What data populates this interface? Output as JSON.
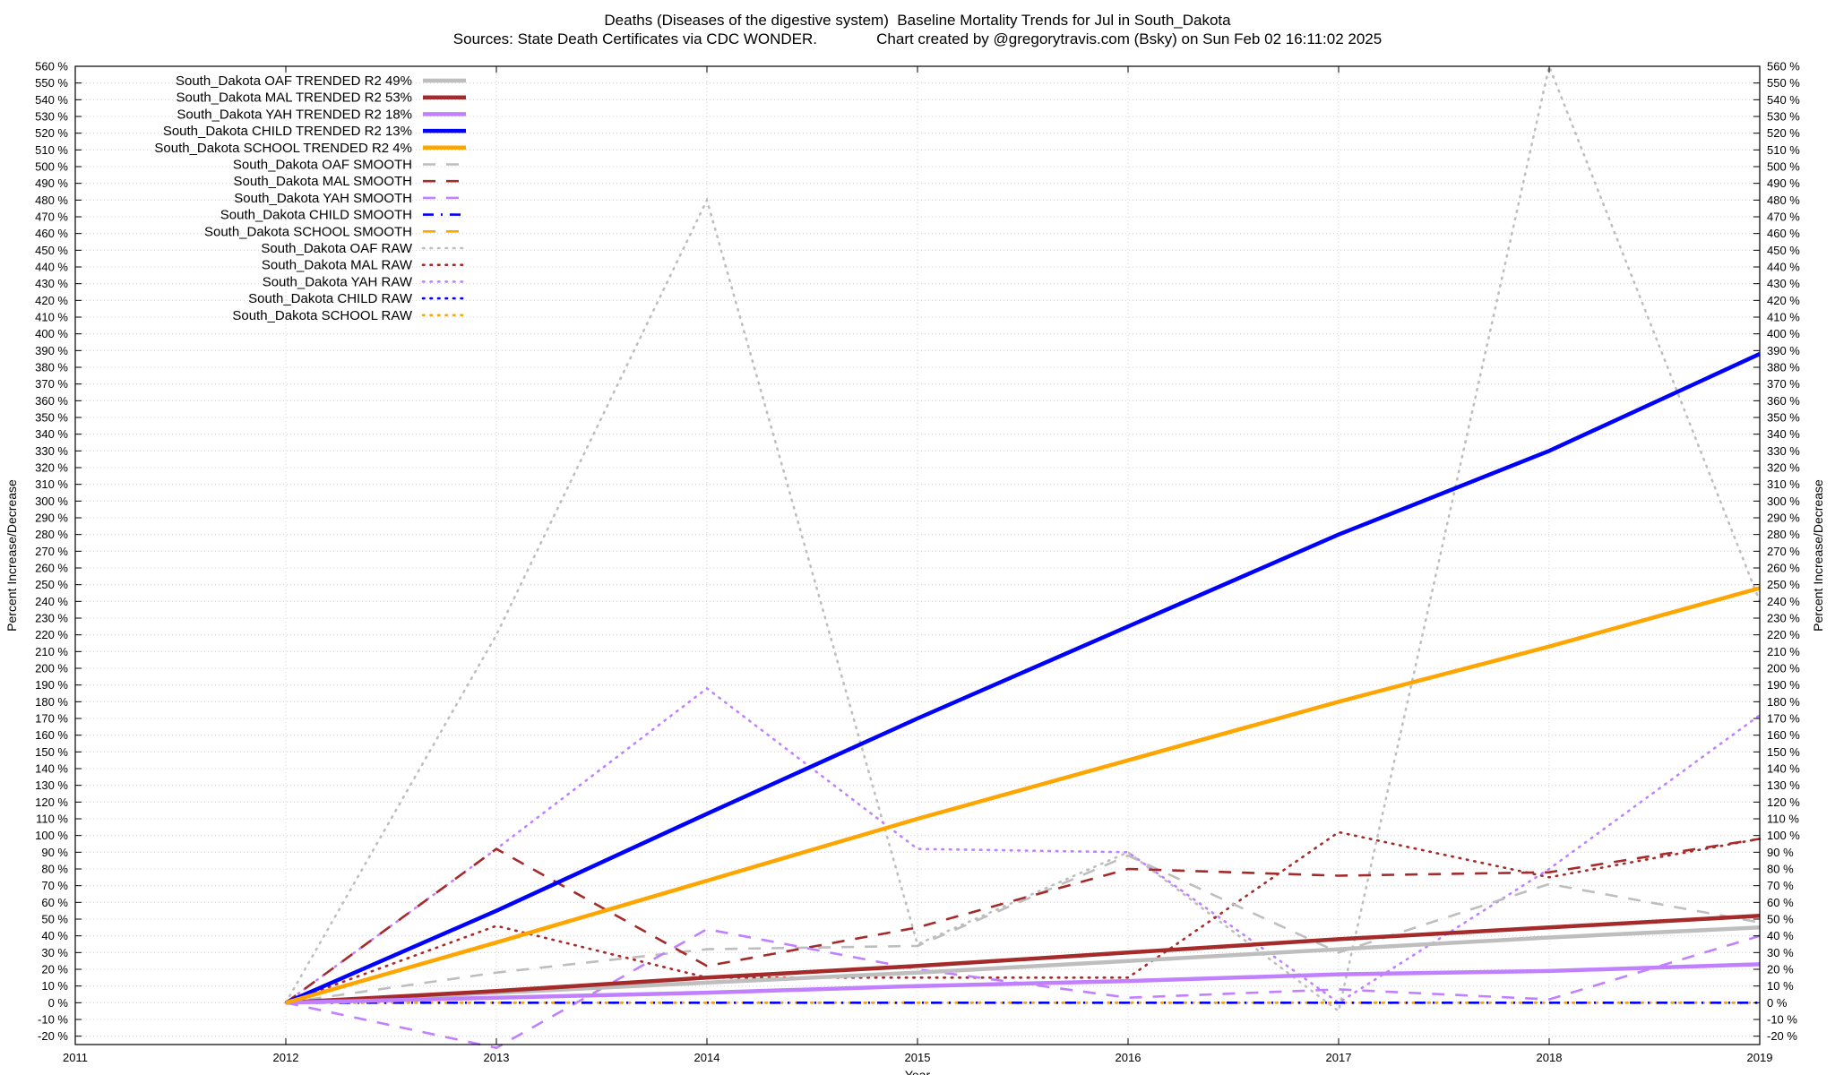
{
  "header": {
    "title": "Deaths (Diseases of the digestive system)  Baseline Mortality Trends for Jul in South_Dakota",
    "subtitle": "Sources: State Death Certificates via CDC WONDER.              Chart created by @gregorytravis.com (Bsky) on Sun Feb 02 16:11:02 2025"
  },
  "chart_data": {
    "type": "line",
    "xlabel": "Year",
    "ylabel": "Percent Increase/Decrease",
    "y2label": "Percent Increase/Decrease",
    "xlim": [
      2011,
      2019
    ],
    "ylim": [
      -25,
      560
    ],
    "x_ticks": [
      2011,
      2012,
      2013,
      2014,
      2015,
      2016,
      2017,
      2018,
      2019
    ],
    "y_tick_step": 10,
    "y_tick_suffix": " %",
    "grid": true,
    "legend_position": "top-left",
    "colors": {
      "oaf": "#bebebe",
      "mal": "#a52a2a",
      "yah": "#c080ff",
      "child": "#0000ff",
      "school": "#ffa500"
    },
    "series": [
      {
        "name": "South_Dakota OAF TRENDED R2  49%",
        "key": "oaf",
        "style": "trended",
        "x": [
          2012,
          2013,
          2014,
          2015,
          2016,
          2017,
          2018,
          2019
        ],
        "y": [
          0,
          6,
          12,
          18,
          25,
          32,
          39,
          45
        ]
      },
      {
        "name": "South_Dakota MAL TRENDED R2  53%",
        "key": "mal",
        "style": "trended",
        "x": [
          2012,
          2013,
          2014,
          2015,
          2016,
          2017,
          2018,
          2019
        ],
        "y": [
          0,
          7,
          15,
          22,
          30,
          38,
          45,
          52
        ]
      },
      {
        "name": "South_Dakota YAH TRENDED R2  18%",
        "key": "yah",
        "style": "trended",
        "x": [
          2012,
          2013,
          2014,
          2015,
          2016,
          2017,
          2018,
          2019
        ],
        "y": [
          0,
          3,
          6,
          10,
          13,
          17,
          19,
          23
        ]
      },
      {
        "name": "South_Dakota CHILD TRENDED R2  13%",
        "key": "child",
        "style": "trended",
        "x": [
          2012,
          2013,
          2014,
          2015,
          2016,
          2017,
          2018,
          2019
        ],
        "y": [
          0,
          55,
          113,
          170,
          225,
          280,
          330,
          388
        ]
      },
      {
        "name": "South_Dakota SCHOOL TRENDED R2   4%",
        "key": "school",
        "style": "trended",
        "x": [
          2012,
          2013,
          2014,
          2015,
          2016,
          2017,
          2018,
          2019
        ],
        "y": [
          0,
          36,
          73,
          110,
          145,
          180,
          213,
          248
        ]
      },
      {
        "name": "South_Dakota OAF SMOOTH",
        "key": "oaf",
        "style": "smooth",
        "x": [
          2012,
          2013,
          2014,
          2015,
          2016,
          2017,
          2018,
          2019
        ],
        "y": [
          0,
          18,
          32,
          34,
          88,
          30,
          71,
          48
        ]
      },
      {
        "name": "South_Dakota MAL SMOOTH",
        "key": "mal",
        "style": "smooth",
        "x": [
          2012,
          2013,
          2014,
          2015,
          2016,
          2017,
          2018,
          2019
        ],
        "y": [
          0,
          92,
          22,
          45,
          80,
          76,
          78,
          98
        ]
      },
      {
        "name": "South_Dakota YAH SMOOTH",
        "key": "yah",
        "style": "smooth",
        "x": [
          2012,
          2013,
          2014,
          2015,
          2016,
          2017,
          2018,
          2019
        ],
        "y": [
          0,
          -27,
          44,
          20,
          3,
          8,
          2,
          40
        ]
      },
      {
        "name": "South_Dakota CHILD SMOOTH",
        "key": "child",
        "style": "smoothdash",
        "x": [
          2012,
          2013,
          2014,
          2015,
          2016,
          2017,
          2018,
          2019
        ],
        "y": [
          0,
          0,
          0,
          0,
          0,
          0,
          0,
          0
        ]
      },
      {
        "name": "South_Dakota SCHOOL SMOOTH",
        "key": "school",
        "style": "smooth",
        "x": [],
        "y": []
      },
      {
        "name": "South_Dakota OAF RAW",
        "key": "oaf",
        "style": "raw",
        "x": [
          2012,
          2013,
          2014,
          2015,
          2016,
          2017,
          2018,
          2019
        ],
        "y": [
          0,
          220,
          480,
          35,
          90,
          -5,
          560,
          240
        ]
      },
      {
        "name": "South_Dakota MAL RAW",
        "key": "mal",
        "style": "raw",
        "x": [
          2012,
          2013,
          2014,
          2015,
          2016,
          2017,
          2018,
          2019
        ],
        "y": [
          0,
          46,
          15,
          15,
          15,
          102,
          75,
          98
        ]
      },
      {
        "name": "South_Dakota YAH RAW",
        "key": "yah",
        "style": "raw",
        "x": [
          2012,
          2013,
          2014,
          2015,
          2016,
          2017,
          2018,
          2019
        ],
        "y": [
          0,
          92,
          188,
          92,
          90,
          0,
          80,
          172
        ]
      },
      {
        "name": "South_Dakota CHILD RAW",
        "key": "child",
        "style": "raw",
        "x": [
          2012,
          2013,
          2014,
          2015,
          2016,
          2017,
          2018,
          2019
        ],
        "y": [
          0,
          0,
          0,
          0,
          0,
          0,
          0,
          0
        ]
      },
      {
        "name": "South_Dakota SCHOOL RAW",
        "key": "school",
        "style": "raw",
        "x": [
          2012,
          2013,
          2014,
          2015,
          2016,
          2017,
          2018,
          2019
        ],
        "y": [
          0,
          0,
          0,
          0,
          0,
          0,
          0,
          0
        ]
      }
    ]
  }
}
